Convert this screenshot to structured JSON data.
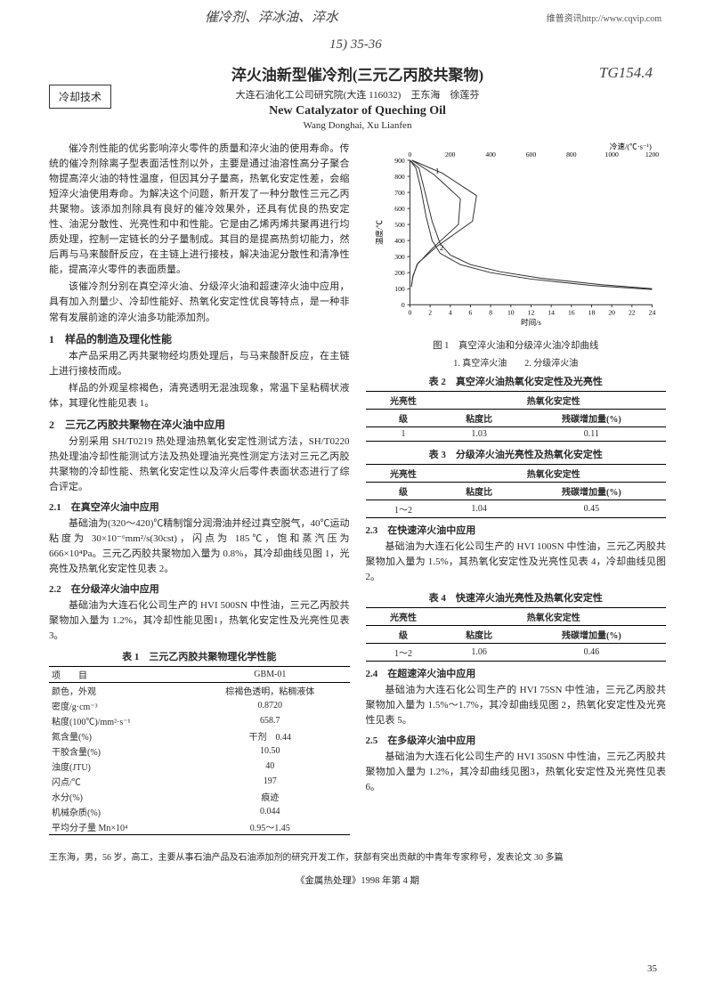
{
  "watermark": "维普资讯http://www.cqvip.com",
  "handwriting": {
    "hw1": "催冷剂、淬冰油、淬水",
    "hw2": "15) 35-36",
    "hw3": "TG154.4"
  },
  "category": "冷却技术",
  "title_cn": "淬火油新型催冷剂(三元乙丙胶共聚物)",
  "affil": "大连石油化工公司研究院(大连 116032)　王东海　徐莲芬",
  "title_en": "New Catalyzator of Queching Oil",
  "authors_en": "Wang Donghai, Xu Lianfen",
  "body": {
    "p1": "催冷剂性能的优劣影响淬火零件的质量和淬火油的使用寿命。传统的催冷剂除离子型表面活性剂以外，主要是通过油溶性高分子聚合物提高淬火油的特性温度，但因其分子量高，热氧化安定性差，会缩短淬火油使用寿命。为解决这个问题，新开发了一种分散性三元乙丙共聚物。该添加剂除具有良好的催冷效果外，还具有优良的热安定性、油泥分散性、光亮性和中和性能。它是由乙烯丙烯共聚再进行均质处理，控制一定链长的分子量制成。其目的是提高热剪切能力，然后再与马来酸酐反应，在主链上进行接枝，解决油泥分散性和清净性能，提高淬火零件的表面质量。",
    "p2": "该催冷剂分别在真空淬火油、分级淬火油和超速淬火油中应用，具有加入剂量少、冷却性能好、热氧化安定性优良等特点，是一种非常有发展前途的淬火油多功能添加剂。",
    "s1": "1　样品的制造及理化性能",
    "p3": "本产品采用乙丙共聚物经均质处理后，与马来酸酐反应，在主链上进行接枝而成。",
    "p4": "样品的外观呈棕褐色，清亮透明无混浊现象，常温下呈粘稠状液体，其理化性能见表 1。",
    "s2": "2　三元乙丙胶共聚物在淬火油中应用",
    "p5": "分别采用 SH/T0219 热处理油热氧化安定性测试方法，SH/T0220 热处理油冷却性能测试方法及热处理油光亮性测定方法对三元乙丙胶共聚物的冷却性能、热氧化安定性以及淬火后零件表面状态进行了综合评定。",
    "s21": "2.1　在真空淬火油中应用",
    "p6": "基础油为(320～420)℃精制馏分润滑油并经过真空脱气，40℃运动粘度为 30×10⁻⁶mm²/s(30cst)，闪点为 185℃，饱和蒸汽压为 666×10⁴Pa。三元乙丙胶共聚物加入量为 0.8%，其冷却曲线见图 1，光亮性及热氧化安定性见表 2。",
    "s22": "2.2　在分级淬火油中应用",
    "p7": "基础油为大连石化公司生产的 HVI 500SN 中性油，三元乙丙胶共聚物加入量为 1.2%，其冷却性能见图1，热氧化安定性及光亮性见表 3。",
    "s23": "2.3　在快速淬火油中应用",
    "p8": "基础油为大连石化公司生产的 HVI 100SN 中性油，三元乙丙胶共聚物加入量为 1.5%，其热氧化安定性及光亮性见表 4，冷却曲线见图2。",
    "s24": "2.4　在超速淬火油中应用",
    "p9": "基础油为大连石化公司生产的 HVI 75SN 中性油，三元乙丙胶共聚物加入量为 1.5%～1.7%，其冷却曲线见图 2，热氧化安定性及光亮性见表 5。",
    "s25": "2.5　在多级淬火油中应用",
    "p10": "基础油为大连石化公司生产的 HVI 350SN 中性油，三元乙丙胶共聚物加入量为 1.2%，其冷却曲线见图3，热氧化安定性及光亮性见表 6。"
  },
  "table1": {
    "caption": "表 1　三元乙丙胶共聚物理化学性能",
    "header": {
      "c1": "项　　目",
      "c2": "GBM-01"
    },
    "rows": [
      [
        "颜色，外观",
        "棕褐色透明，粘稠液体"
      ],
      [
        "密度/g·cm⁻³",
        "0.8720"
      ],
      [
        "粘度(100℃)/mm²·s⁻¹",
        "658.7"
      ],
      [
        "氮含量(%)",
        "干剂　0.44"
      ],
      [
        "干胶含量(%)",
        "10.50"
      ],
      [
        "浊度(JTU)",
        "40"
      ],
      [
        "闪点/℃",
        "197"
      ],
      [
        "水分(%)",
        "痕迹"
      ],
      [
        "机械杂质(%)",
        "0.044"
      ],
      [
        "平均分子量 Mn×10⁴",
        "0.95～1.45"
      ]
    ]
  },
  "chart": {
    "type": "line",
    "xlabel": "时间/s",
    "ylabel": "温度/℃",
    "x2label": "冷速/(℃·s⁻¹)",
    "ylim": [
      0,
      900
    ],
    "ytick_step": 100,
    "xlim": [
      0,
      24
    ],
    "xtick_step": 2,
    "x2lim": [
      0,
      1200
    ],
    "x2tick_step": 200,
    "series_labels": [
      "1",
      "2"
    ],
    "line_color": "#2a2a2a",
    "background_color": "#ffffff",
    "series1_temp_time": [
      [
        0,
        900
      ],
      [
        0.6,
        850
      ],
      [
        1.1,
        720
      ],
      [
        1.6,
        550
      ],
      [
        2.2,
        400
      ],
      [
        3,
        320
      ],
      [
        5,
        250
      ],
      [
        8,
        200
      ],
      [
        12,
        160
      ],
      [
        18,
        120
      ],
      [
        24,
        95
      ]
    ],
    "series2_temp_time": [
      [
        0,
        900
      ],
      [
        0.9,
        850
      ],
      [
        1.5,
        700
      ],
      [
        2.2,
        520
      ],
      [
        3,
        380
      ],
      [
        4,
        310
      ],
      [
        6,
        250
      ],
      [
        9,
        205
      ],
      [
        13,
        165
      ],
      [
        19,
        125
      ],
      [
        24,
        100
      ]
    ],
    "series1_rate_temp": [
      [
        10,
        900
      ],
      [
        160,
        820
      ],
      [
        330,
        680
      ],
      [
        310,
        520
      ],
      [
        130,
        360
      ],
      [
        40,
        260
      ],
      [
        15,
        180
      ],
      [
        8,
        120
      ]
    ],
    "series2_rate_temp": [
      [
        10,
        900
      ],
      [
        120,
        810
      ],
      [
        250,
        660
      ],
      [
        240,
        500
      ],
      [
        110,
        350
      ],
      [
        35,
        250
      ],
      [
        14,
        170
      ],
      [
        7,
        110
      ]
    ]
  },
  "fig1": {
    "caption": "图 1　真空淬火油和分级淬火油冷却曲线",
    "sub": "1. 真空淬火油　　2. 分级淬火油"
  },
  "table2": {
    "caption": "表 2　真空淬火油热氧化安定性及光亮性",
    "h1": "光亮性",
    "h2": "热氧化安定性",
    "h3": "级",
    "h4": "粘度比",
    "h5": "残碳增加量(%)",
    "row": [
      "1",
      "1.03",
      "0.11"
    ]
  },
  "table3": {
    "caption": "表 3　分级淬火油光亮性及热氧化安定性",
    "h1": "光亮性",
    "h2": "热氧化安定性",
    "h3": "级",
    "h4": "粘度比",
    "h5": "残碳增加量(%)",
    "row": [
      "1～2",
      "1.04",
      "0.45"
    ]
  },
  "table4": {
    "caption": "表 4　快速淬火油光亮性及热氧化安定性",
    "h1": "光亮性",
    "h2": "热氧化安定性",
    "h3": "级",
    "h4": "粘度比",
    "h5": "残碳增加量(%)",
    "row": [
      "1～2",
      "1.06",
      "0.46"
    ]
  },
  "footnote": "王东海，男，56 岁，高工，主要从事石油产品及石油添加剂的研究开发工作，获部有突出贡献的中青年专家称号，发表论文 30 多篇",
  "footer": "《金属热处理》1998 年第 4 期",
  "page": "35"
}
